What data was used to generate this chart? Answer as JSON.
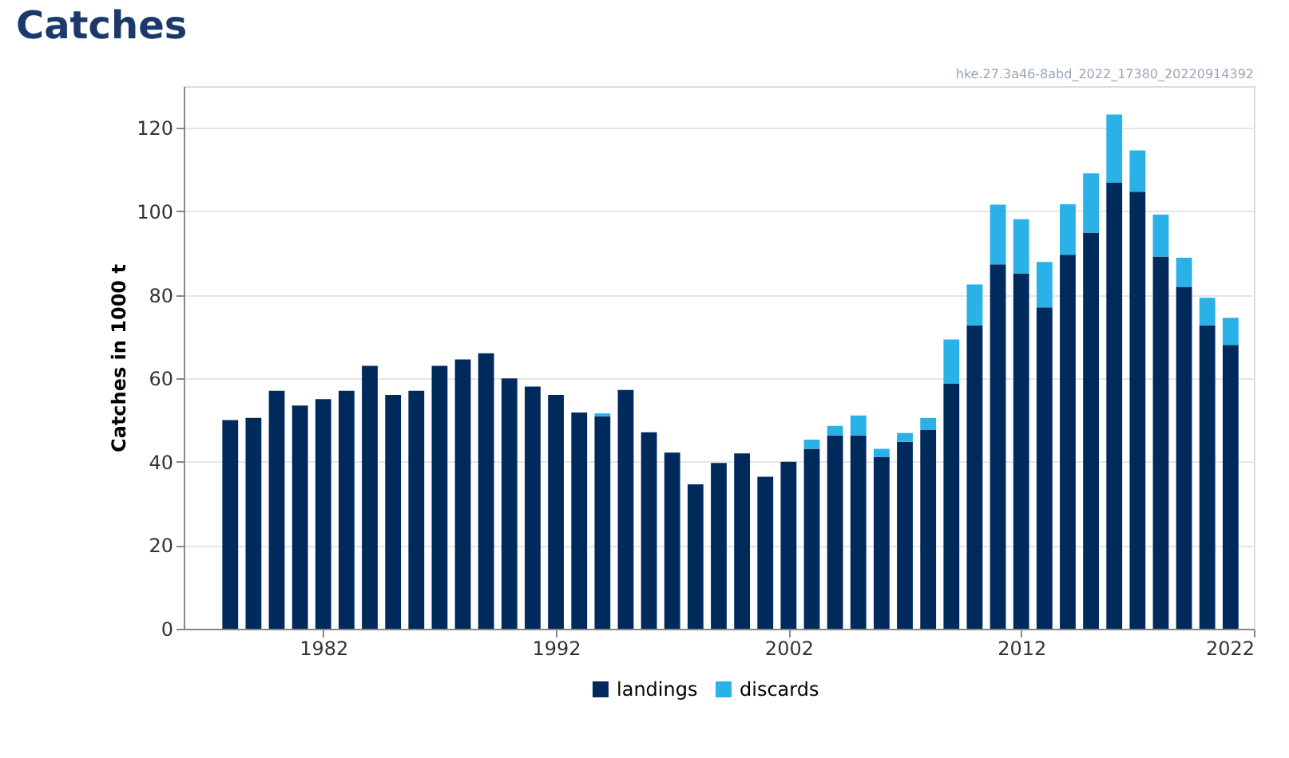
{
  "chart_data": {
    "type": "bar",
    "title": "Catches",
    "ylabel": "Catches in 1000 t",
    "annotations": [
      "hke.27.3a46-8abd_2022_17380_20220914392"
    ],
    "x": [
      1978,
      1979,
      1980,
      1981,
      1982,
      1983,
      1984,
      1985,
      1986,
      1987,
      1988,
      1989,
      1990,
      1991,
      1992,
      1993,
      1994,
      1995,
      1996,
      1997,
      1998,
      1999,
      2000,
      2001,
      2002,
      2003,
      2004,
      2005,
      2006,
      2007,
      2008,
      2009,
      2010,
      2011,
      2012,
      2013,
      2014,
      2015,
      2016,
      2017,
      2018,
      2019,
      2020,
      2021
    ],
    "series": [
      {
        "name": "landings",
        "color": "#002a5c",
        "values": [
          50,
          50.5,
          57,
          53.5,
          55,
          57,
          63,
          56,
          57,
          63,
          64.5,
          66,
          60,
          58,
          56,
          51.8,
          50.9,
          57.2,
          47.1,
          42.2,
          34.6,
          39.7,
          42,
          36.4,
          40,
          43.1,
          46.3,
          46.3,
          41.2,
          44.8,
          47.6,
          58.7,
          72.7,
          87.3,
          85.1,
          77,
          89.6,
          94.9,
          106.9,
          104.7,
          89.2,
          81.9,
          72.7,
          68
        ]
      },
      {
        "name": "discards",
        "color": "#29b1e8",
        "values": [
          null,
          null,
          null,
          null,
          null,
          null,
          null,
          null,
          null,
          null,
          null,
          null,
          null,
          null,
          null,
          null,
          0.7,
          null,
          null,
          null,
          null,
          null,
          null,
          null,
          null,
          2.2,
          2.3,
          4.8,
          1.9,
          2.1,
          2.9,
          10.6,
          9.8,
          14.3,
          13,
          10.9,
          12.1,
          14.2,
          16.3,
          9.9,
          10,
          7,
          6.6,
          6.5
        ]
      }
    ],
    "stacked": true,
    "xlim": [
      1976,
      2022
    ],
    "xticks": [
      1982,
      1992,
      2002,
      2012,
      2022
    ],
    "ylim": [
      0,
      130
    ],
    "yticks": [
      0,
      20,
      40,
      60,
      80,
      100,
      120
    ],
    "grid": "y",
    "legend": "bottom"
  }
}
